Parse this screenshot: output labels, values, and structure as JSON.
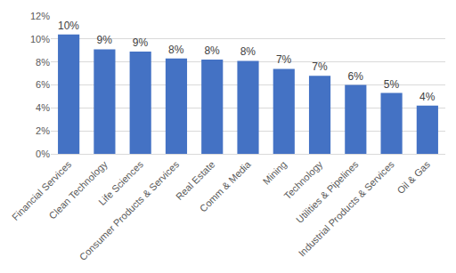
{
  "chart_data": {
    "type": "bar",
    "categories": [
      "Financial Services",
      "Clean Technology",
      "Life Sciences",
      "Consumer Products & Services",
      "Real Estate",
      "Comm & Media",
      "Mining",
      "Technology",
      "Utilities & Pipelines",
      "Industrial Products & Services",
      "Oil & Gas"
    ],
    "values": [
      10.4,
      9.1,
      8.9,
      8.3,
      8.2,
      8.1,
      7.4,
      6.8,
      6.0,
      5.3,
      4.2
    ],
    "value_labels": [
      "10%",
      "9%",
      "9%",
      "8%",
      "8%",
      "8%",
      "7%",
      "7%",
      "6%",
      "5%",
      "4%"
    ],
    "color": "#4472c4",
    "ylim": [
      0,
      12
    ],
    "yticks": [
      {
        "value": 0,
        "label": "0%"
      },
      {
        "value": 2,
        "label": "2%"
      },
      {
        "value": 4,
        "label": "4%"
      },
      {
        "value": 6,
        "label": "6%"
      },
      {
        "value": 8,
        "label": "8%"
      },
      {
        "value": 10,
        "label": "10%"
      },
      {
        "value": 12,
        "label": "12%"
      }
    ],
    "grid": true,
    "data_labels": true
  }
}
